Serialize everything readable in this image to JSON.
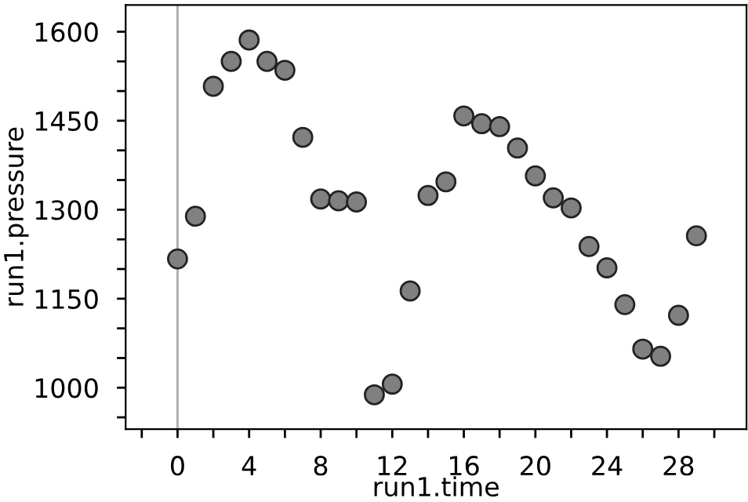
{
  "chart_data": {
    "type": "scatter",
    "xlabel": "run1.time",
    "ylabel": "run1.pressure",
    "x": [
      0,
      1,
      2,
      3,
      4,
      5,
      6,
      7,
      8,
      9,
      10,
      11,
      12,
      13,
      14,
      15,
      16,
      17,
      18,
      19,
      20,
      21,
      22,
      23,
      24,
      25,
      26,
      27,
      28,
      29
    ],
    "series": [
      {
        "color": "#808080",
        "values": [
          1217,
          1289,
          1508,
          1550,
          1586,
          1550,
          1535,
          1422,
          1318,
          1315,
          1313,
          988,
          1006,
          1163,
          1324,
          1347,
          1458,
          1445,
          1440,
          1404,
          1357,
          1320,
          1303,
          1238,
          1202,
          1140,
          1065,
          1053,
          1122,
          1256
        ]
      }
    ],
    "xlim": [
      -2.9,
      31.8
    ],
    "ylim": [
      930,
      1645
    ],
    "xticks": [
      {
        "value": -2,
        "label": null
      },
      0,
      {
        "value": 2,
        "label": null
      },
      4,
      {
        "value": 6,
        "label": null
      },
      8,
      {
        "value": 10,
        "label": null
      },
      12,
      {
        "value": 14,
        "label": null
      },
      16,
      {
        "value": 18,
        "label": null
      },
      20,
      {
        "value": 22,
        "label": null
      },
      24,
      {
        "value": 26,
        "label": null
      },
      28,
      {
        "value": 30,
        "label": null
      }
    ],
    "yticks": [
      {
        "value": 950,
        "label": null
      },
      1000,
      {
        "value": 1050,
        "label": null
      },
      {
        "value": 1100,
        "label": null
      },
      1150,
      {
        "value": 1200,
        "label": null
      },
      {
        "value": 1250,
        "label": null
      },
      1300,
      {
        "value": 1350,
        "label": null
      },
      {
        "value": 1400,
        "label": null
      },
      1450,
      {
        "value": 1500,
        "label": null
      },
      {
        "value": 1550,
        "label": null
      },
      1600
    ],
    "ref_lines": [
      {
        "axis": "x",
        "value": 0,
        "color": "#aaaaaa"
      }
    ],
    "marker": "circle",
    "grid": false,
    "legend": false
  }
}
